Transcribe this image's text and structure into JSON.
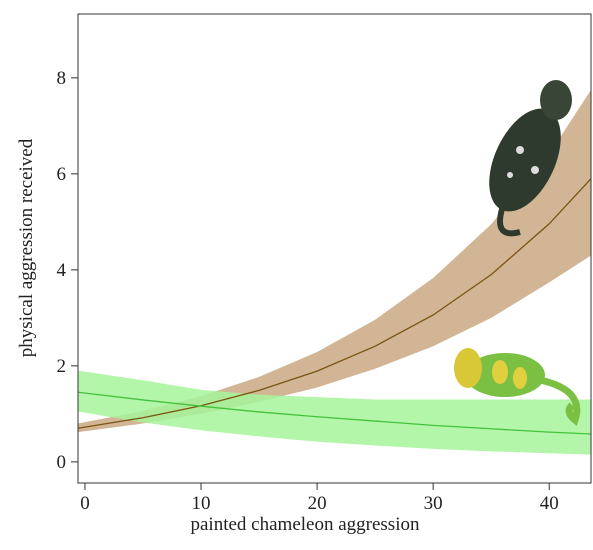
{
  "chart_data": {
    "type": "line",
    "xlabel": "painted chameleon aggression",
    "ylabel": "physical aggression received",
    "x": [
      -0.6,
      5,
      10,
      15,
      20,
      25,
      30,
      35,
      40,
      43.6
    ],
    "xlim": [
      -0.6,
      43.6
    ],
    "xticks": [
      0,
      10,
      20,
      30,
      40
    ],
    "ylim": [
      -0.44,
      9.33
    ],
    "yticks": [
      0,
      2,
      4,
      6,
      8
    ],
    "series": [
      {
        "color": "#7a5410",
        "band_color": "#c9a882",
        "values": [
          0.7,
          0.92,
          1.17,
          1.49,
          1.89,
          2.41,
          3.06,
          3.9,
          4.96,
          5.9
        ],
        "lower": [
          0.62,
          0.8,
          1.0,
          1.25,
          1.55,
          1.94,
          2.41,
          3.0,
          3.74,
          4.3
        ],
        "upper": [
          0.8,
          1.06,
          1.37,
          1.77,
          2.29,
          2.96,
          3.83,
          4.95,
          6.41,
          7.75
        ]
      },
      {
        "color": "#44c23a",
        "band_color": "#a6f59a",
        "values": [
          1.45,
          1.29,
          1.16,
          1.04,
          0.94,
          0.85,
          0.76,
          0.69,
          0.62,
          0.58
        ],
        "lower": [
          1.05,
          0.82,
          0.66,
          0.53,
          0.42,
          0.34,
          0.27,
          0.22,
          0.18,
          0.15
        ],
        "upper": [
          1.9,
          1.7,
          1.5,
          1.4,
          1.35,
          1.3,
          1.3,
          1.3,
          1.3,
          1.3
        ]
      }
    ]
  }
}
